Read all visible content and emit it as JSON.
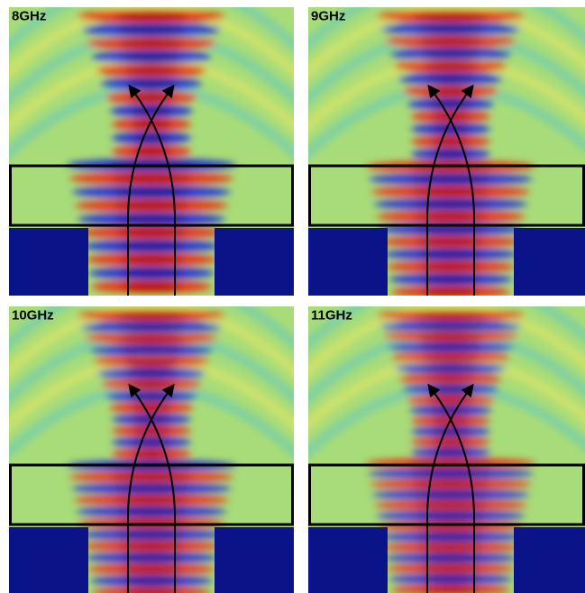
{
  "panels": [
    {
      "label": "8GHz"
    },
    {
      "label": "9GHz"
    },
    {
      "label": "10GHz"
    },
    {
      "label": "11GHz"
    }
  ]
}
